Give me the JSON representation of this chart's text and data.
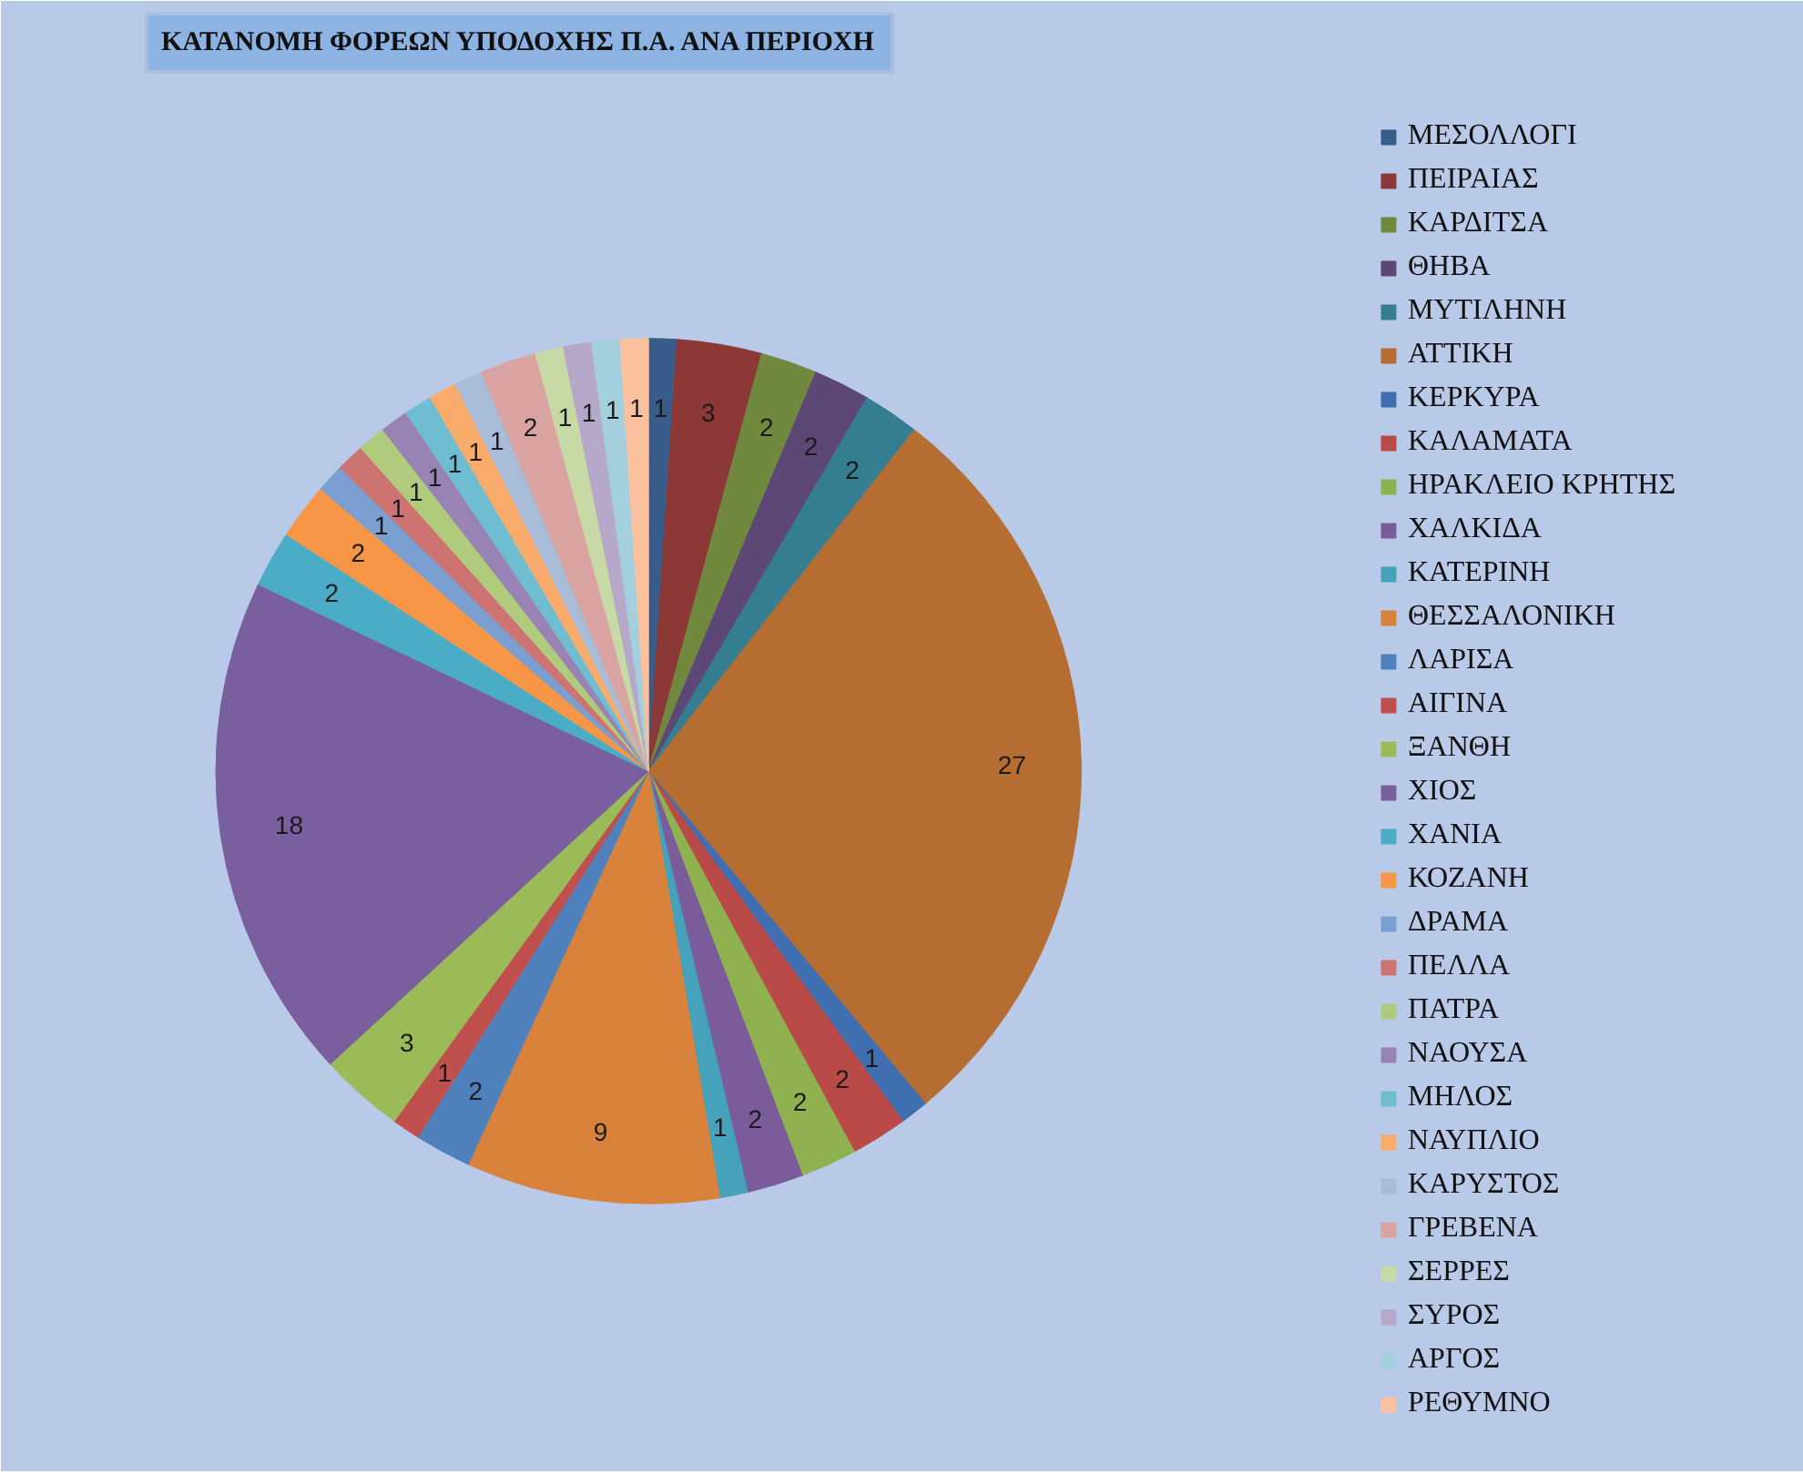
{
  "chart_data": {
    "type": "pie",
    "title": "ΚΑΤΑΝΟΜΗ ΦΟΡΕΩΝ ΥΠΟΔΟΧΗΣ Π.Α. ΑΝΑ ΠΕΡΙΟΧΗ",
    "categories": [
      "ΜΕΣΟΛΛΟΓΙ",
      "ΠΕΙΡΑΙΑΣ",
      "ΚΑΡΔΙΤΣΑ",
      "ΘΗΒΑ",
      "ΜΥΤΙΛΗΝΗ",
      "ΑΤΤΙΚΗ",
      "ΚΕΡΚΥΡΑ",
      "ΚΑΛΑΜΑΤΑ",
      "ΗΡΑΚΛΕΙΟ ΚΡΗΤΗΣ",
      "ΧΑΛΚΙΔΑ",
      "ΚΑΤΕΡΙΝΗ",
      "ΘΕΣΣΑΛΟΝΙΚΗ",
      "ΛΑΡΙΣΑ",
      "ΑΙΓΙΝΑ",
      "ΞΑΝΘΗ",
      "ΧΙΟΣ",
      "ΧΑΝΙΑ",
      "ΚΟΖΑΝΗ",
      "ΔΡΑΜΑ",
      "ΠΕΛΛΑ",
      "ΠΑΤΡΑ",
      "ΝΑΟΥΣΑ",
      "ΜΗΛΟΣ",
      "ΝΑΥΠΛΙΟ",
      "ΚΑΡΥΣΤΟΣ",
      "ΓΡΕΒΕΝΑ",
      "ΣΕΡΡΕΣ",
      "ΣΥΡΟΣ",
      "ΑΡΓΟΣ",
      "ΡΕΘΥΜΝΟ"
    ],
    "values": [
      1,
      3,
      2,
      2,
      2,
      27,
      1,
      2,
      2,
      2,
      1,
      9,
      2,
      1,
      3,
      18,
      2,
      2,
      1,
      1,
      1,
      1,
      1,
      1,
      1,
      2,
      1,
      1,
      1,
      1
    ],
    "colors": [
      "#385d8a",
      "#8c3836",
      "#71893f",
      "#5c4776",
      "#357d91",
      "#b66d31",
      "#3f6fb0",
      "#b94a47",
      "#8fb14f",
      "#7a5c9a",
      "#45a2ba",
      "#d9823b",
      "#4f81bd",
      "#c0504d",
      "#9bbb59",
      "#7a5f9e",
      "#4bacc6",
      "#f79646",
      "#7a9fd0",
      "#cd7371",
      "#b0cb7c",
      "#9983b5",
      "#6fbdd1",
      "#f9ab6b",
      "#a8bcd8",
      "#d9a3a2",
      "#c7d9a4",
      "#b6a8c9",
      "#a3d0dc",
      "#fbc19e"
    ],
    "data_labels": true,
    "legend": "right"
  }
}
